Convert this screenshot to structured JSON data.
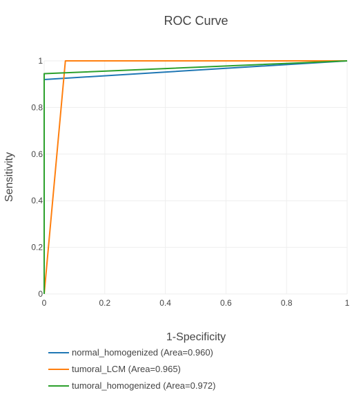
{
  "chart_data": {
    "type": "line",
    "title": "ROC Curve",
    "xlabel": "1-Specificity",
    "ylabel": "Sensitivity",
    "xlim": [
      0,
      1
    ],
    "ylim": [
      0,
      1
    ],
    "x_ticks": [
      "0",
      "0.2",
      "0.4",
      "0.6",
      "0.8",
      "1"
    ],
    "y_ticks": [
      "0",
      "0.2",
      "0.4",
      "0.6",
      "0.8",
      "1"
    ],
    "grid": true,
    "legend_position": "bottom",
    "series": [
      {
        "name": "normal_homogenized (Area=0.960)",
        "color": "#1f77b4",
        "points": [
          [
            0,
            0
          ],
          [
            0,
            0.92
          ],
          [
            1,
            1
          ]
        ]
      },
      {
        "name": "tumoral_LCM (Area=0.965)",
        "color": "#ff7f0e",
        "points": [
          [
            0,
            0
          ],
          [
            0.07,
            1
          ],
          [
            1,
            1
          ]
        ]
      },
      {
        "name": "tumoral_homogenized (Area=0.972)",
        "color": "#2ca02c",
        "points": [
          [
            0,
            0
          ],
          [
            0,
            0.945
          ],
          [
            1,
            1
          ]
        ]
      }
    ],
    "extra_lines": [
      {
        "color": "#bcbd22",
        "points": [
          [
            0.07,
            1
          ],
          [
            1,
            1
          ]
        ]
      }
    ]
  }
}
